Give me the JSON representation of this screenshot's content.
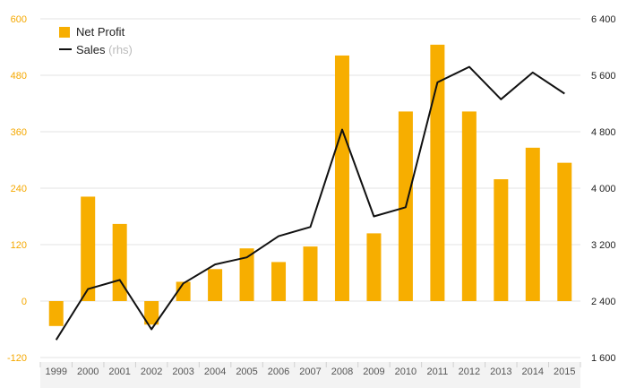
{
  "chart_data": {
    "type": "bar",
    "title": "",
    "xlabel": "",
    "ylabel": "",
    "categories": [
      "1999",
      "2000",
      "2001",
      "2002",
      "2003",
      "2004",
      "2005",
      "2006",
      "2007",
      "2008",
      "2009",
      "2010",
      "2011",
      "2012",
      "2013",
      "2014",
      "2015"
    ],
    "series": [
      {
        "name": "Net Profit",
        "type": "bar",
        "axis": "left",
        "color": "#f7ae00",
        "values": [
          -53,
          222,
          164,
          -50,
          41,
          68,
          112,
          83,
          116,
          522,
          144,
          403,
          545,
          403,
          259,
          326,
          294
        ]
      },
      {
        "name": "Sales",
        "type": "line",
        "axis": "right",
        "color": "#111111",
        "values": [
          1850,
          2570,
          2700,
          2000,
          2650,
          2920,
          3020,
          3320,
          3450,
          4830,
          3600,
          3730,
          5500,
          5720,
          5260,
          5640,
          5340
        ]
      }
    ],
    "legend": {
      "position": "top-left",
      "items": [
        {
          "label": "Net Profit",
          "hint": ""
        },
        {
          "label": "Sales",
          "hint": "(rhs)"
        }
      ]
    },
    "left_axis": {
      "ylim": [
        -120,
        600
      ],
      "ticks": [
        -120,
        0,
        120,
        240,
        360,
        480,
        600
      ],
      "tick_labels": [
        "-120",
        "0",
        "120",
        "240",
        "360",
        "480",
        "600"
      ],
      "color": "#f5a800"
    },
    "right_axis": {
      "ylim": [
        1600,
        6400
      ],
      "ticks": [
        1600,
        2400,
        3200,
        4000,
        4800,
        5600,
        6400
      ],
      "tick_labels": [
        "1 600",
        "2 400",
        "3 200",
        "4 000",
        "4 800",
        "5 600",
        "6 400"
      ],
      "color": "#222222"
    },
    "grid": true
  }
}
